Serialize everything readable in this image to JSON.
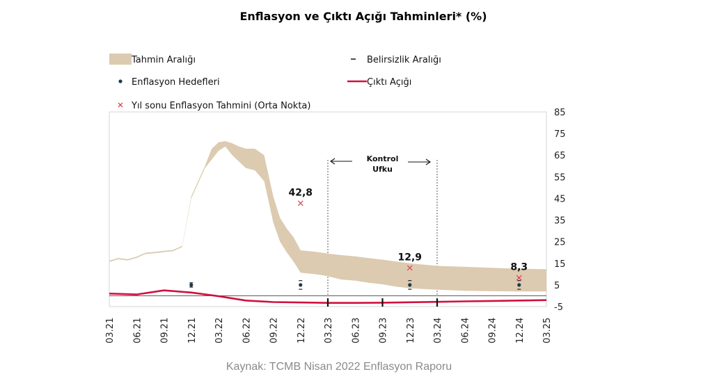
{
  "chart_data": {
    "type": "area",
    "title": "Enflasyon ve Çıktı Açığı Tahminleri* (%)",
    "source": "Kaynak: TCMB Nisan 2022 Enflasyon Raporu",
    "ylim": [
      -5,
      85
    ],
    "yticks": [
      "85",
      "75",
      "65",
      "55",
      "45",
      "35",
      "25",
      "15",
      "5",
      "-5"
    ],
    "x_labels": [
      "03.21",
      "06.21",
      "09.21",
      "12.21",
      "03.22",
      "06.22",
      "09.22",
      "12.22",
      "03.23",
      "06.23",
      "09.23",
      "12.23",
      "03.24",
      "06.24",
      "09.24",
      "12.24",
      "03.25"
    ],
    "grid": false,
    "legend_position": "top-left",
    "legend": {
      "band": "Tahmin Aralığı",
      "uncertainty": "Belirsizlik Aralığı",
      "targets": "Enflasyon Hedefleri",
      "gap": "Çıktı Açığı",
      "midpoint": "Yıl sonu Enflasyon Tahmini (Orta Nokta)"
    },
    "control_horizon_label": [
      "Kontrol",
      "Ufku"
    ],
    "control_horizon_range": [
      "03.23",
      "03.24"
    ],
    "colors": {
      "band": "#dccbb0",
      "gap": "#d0103f",
      "target": "#1f3a4d",
      "midpoint": "#d9475a"
    },
    "inflation_band": {
      "x": [
        0,
        0.33,
        0.67,
        1,
        1.33,
        1.67,
        2,
        2.33,
        2.67,
        3,
        3.25,
        3.5,
        3.75,
        4,
        4.25,
        4.5,
        4.75,
        5,
        5.33,
        5.67,
        6,
        6.25,
        6.5,
        6.75,
        7,
        7.25,
        7.5,
        7.75,
        8,
        8.5,
        9,
        9.5,
        10,
        10.5,
        11,
        11.5,
        12,
        13,
        14,
        15,
        16
      ],
      "lower": [
        15.6,
        16.9,
        16.3,
        17.5,
        19.3,
        19.7,
        20.2,
        20.6,
        22.5,
        45,
        52,
        59,
        63,
        67,
        69,
        65,
        62,
        59,
        58,
        53,
        34,
        25,
        20,
        15.7,
        10.7,
        10.3,
        10,
        9.6,
        9,
        7.5,
        7,
        6,
        5.3,
        4.2,
        3.5,
        3.1,
        2.8,
        2.3,
        2.1,
        2,
        2
      ],
      "upper": [
        16.2,
        17.5,
        16.9,
        18.1,
        19.9,
        20.3,
        20.8,
        21.2,
        23.1,
        46,
        53,
        60,
        68,
        71,
        71.5,
        70.5,
        69,
        68,
        68,
        65,
        46,
        36,
        31,
        27,
        21,
        20.7,
        20.4,
        20,
        19.5,
        18.8,
        18.2,
        17.4,
        16.7,
        15.8,
        15,
        14.4,
        13.8,
        13.4,
        12.9,
        12.5,
        12.3
      ]
    },
    "output_gap": {
      "x": [
        0,
        1,
        2,
        3,
        4,
        5,
        6,
        7,
        8,
        9,
        10,
        11,
        12,
        13,
        14,
        15,
        16
      ],
      "values": [
        1,
        0.6,
        2.5,
        1.5,
        -0.2,
        -2.2,
        -2.9,
        -3.1,
        -3.3,
        -3.3,
        -3.2,
        -3,
        -2.8,
        -2.6,
        -2.4,
        -2.2,
        -2
      ]
    },
    "targets": [
      {
        "x": 3,
        "value": 5
      },
      {
        "x": 7,
        "value": 5
      },
      {
        "x": 11,
        "value": 5
      },
      {
        "x": 15,
        "value": 5
      }
    ],
    "uncertainty": [
      {
        "x": 3,
        "low": 4,
        "high": 6
      },
      {
        "x": 7,
        "low": 3,
        "high": 7
      },
      {
        "x": 11,
        "low": 3,
        "high": 7
      },
      {
        "x": 15,
        "low": 3,
        "high": 7
      }
    ],
    "midpoints": [
      {
        "x": 7,
        "value": 42.8,
        "label": "42,8"
      },
      {
        "x": 11,
        "value": 12.9,
        "label": "12,9"
      },
      {
        "x": 15,
        "value": 8.3,
        "label": "8,3"
      }
    ]
  }
}
